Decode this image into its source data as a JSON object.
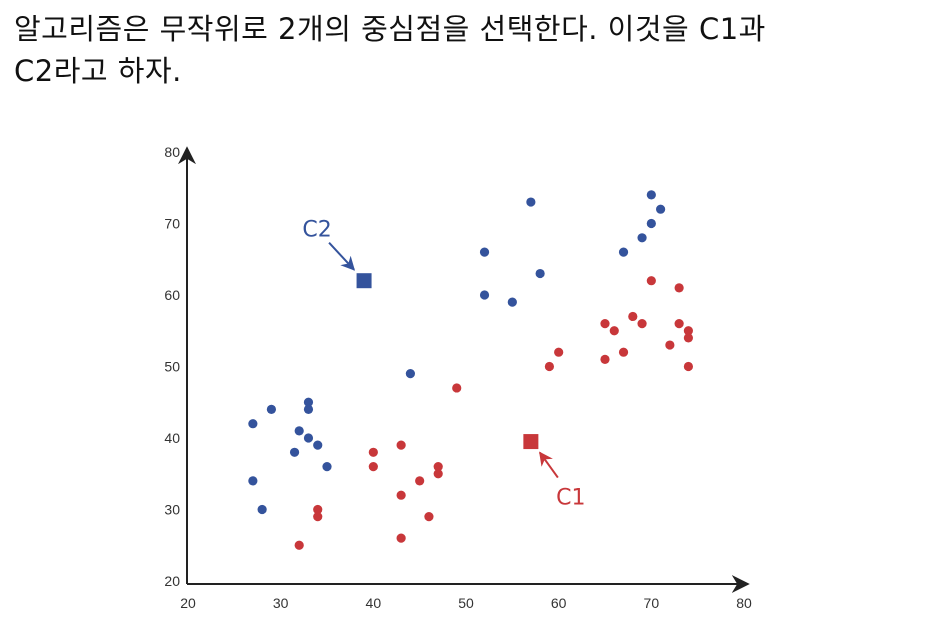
{
  "caption": {
    "line1": "알고리즘은 무작위로 2개의 중심점을 선택한다. 이것을 C1과",
    "line2": "C2라고 하자."
  },
  "chart_data": {
    "type": "scatter",
    "xlim": [
      20,
      80
    ],
    "ylim": [
      20,
      80
    ],
    "x_ticks": [
      "20",
      "30",
      "40",
      "50",
      "60",
      "70",
      "80"
    ],
    "y_ticks": [
      "20",
      "30",
      "40",
      "50",
      "60",
      "70",
      "80"
    ],
    "grid": false,
    "series": [
      {
        "color": "#34539c",
        "points": [
          [
            27,
            42
          ],
          [
            29,
            44
          ],
          [
            33,
            45
          ],
          [
            33,
            44
          ],
          [
            32,
            41
          ],
          [
            33,
            40
          ],
          [
            34,
            39
          ],
          [
            31.5,
            38
          ],
          [
            35,
            36
          ],
          [
            27,
            34
          ],
          [
            28,
            30
          ],
          [
            44,
            49
          ],
          [
            52,
            66
          ],
          [
            52,
            60
          ],
          [
            55,
            59
          ],
          [
            57,
            73
          ],
          [
            58,
            63
          ],
          [
            67,
            66
          ],
          [
            69,
            68
          ],
          [
            70,
            70
          ],
          [
            71,
            72
          ],
          [
            70,
            74
          ]
        ]
      },
      {
        "color": "#c8373a",
        "points": [
          [
            32,
            25
          ],
          [
            34,
            30
          ],
          [
            34,
            29
          ],
          [
            40,
            38
          ],
          [
            40,
            36
          ],
          [
            43,
            39
          ],
          [
            43,
            32
          ],
          [
            43,
            26
          ],
          [
            45,
            34
          ],
          [
            46,
            29
          ],
          [
            47,
            36
          ],
          [
            47,
            35
          ],
          [
            49,
            47
          ],
          [
            59,
            50
          ],
          [
            60,
            52
          ],
          [
            65,
            56
          ],
          [
            65,
            51
          ],
          [
            66,
            55
          ],
          [
            67,
            52
          ],
          [
            68,
            57
          ],
          [
            69,
            56
          ],
          [
            70,
            62
          ],
          [
            72,
            53
          ],
          [
            73,
            61
          ],
          [
            73,
            56
          ],
          [
            74,
            55
          ],
          [
            74,
            54
          ],
          [
            74,
            50
          ]
        ]
      }
    ],
    "centroids": [
      {
        "label": "C2",
        "x": 39,
        "y": 62,
        "color": "#34539c"
      },
      {
        "label": "C1",
        "x": 57,
        "y": 39.5,
        "color": "#c8373a"
      }
    ]
  }
}
